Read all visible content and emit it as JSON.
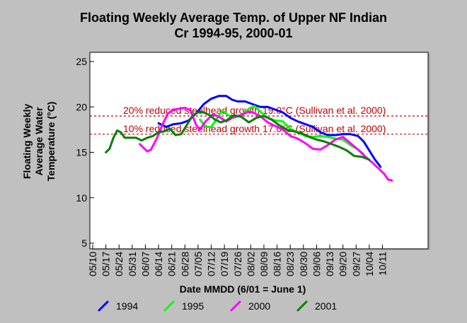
{
  "chart_data": {
    "type": "line",
    "title_lines": [
      "Floating Weekly Average Temp. of Upper NF Indian",
      "Cr 1994-95, 2000-01"
    ],
    "xlabel": "Date MMDD (6/01 = June 1)",
    "ylabel_lines": [
      "Floating Weekly",
      "Average Water",
      "Temperature (°C)"
    ],
    "ylim": [
      5,
      25
    ],
    "yticks": [
      5,
      10,
      15,
      20,
      25
    ],
    "x_day_range": [
      1,
      177
    ],
    "x_tick_labels": [
      "05/10",
      "05/17",
      "05/24",
      "05/31",
      "06/07",
      "06/14",
      "06/21",
      "06/28",
      "07/05",
      "07/12",
      "07/19",
      "07/26",
      "08/02",
      "08/09",
      "08/16",
      "08/23",
      "08/30",
      "09/06",
      "09/13",
      "09/20",
      "09/27",
      "10/04",
      "10/11"
    ],
    "x_tick_days": [
      1,
      8,
      15,
      22,
      29,
      36,
      43,
      50,
      57,
      64,
      71,
      78,
      85,
      92,
      99,
      106,
      113,
      120,
      127,
      134,
      141,
      148,
      155
    ],
    "grid": false,
    "legend_position": "bottom",
    "reference_lines": [
      {
        "value": 19.0,
        "label": "20% reduced steelhead growth 19.0°C (Sullivan et al. 2000)",
        "color": "#c00000"
      },
      {
        "value": 17.0,
        "label": "10% reduced steelhead growth 17.0°C (Sullivan et al. 2000)",
        "color": "#c00000"
      }
    ],
    "series": [
      {
        "name": "1994",
        "color": "#0000ff",
        "points": [
          [
            36,
            18.2
          ],
          [
            40,
            17.8
          ],
          [
            44,
            18.1
          ],
          [
            48,
            18.2
          ],
          [
            52,
            18.5
          ],
          [
            56,
            19.3
          ],
          [
            60,
            20.3
          ],
          [
            64,
            20.9
          ],
          [
            68,
            21.2
          ],
          [
            72,
            21.2
          ],
          [
            75,
            20.8
          ],
          [
            78,
            20.6
          ],
          [
            82,
            20.6
          ],
          [
            86,
            20.3
          ],
          [
            90,
            20.0
          ],
          [
            94,
            20.0
          ],
          [
            98,
            19.7
          ],
          [
            102,
            19.4
          ],
          [
            106,
            18.8
          ],
          [
            110,
            18.4
          ],
          [
            114,
            18.1
          ],
          [
            118,
            17.8
          ],
          [
            122,
            17.2
          ],
          [
            126,
            16.9
          ],
          [
            130,
            16.9
          ],
          [
            134,
            17.0
          ],
          [
            138,
            17.0
          ],
          [
            142,
            16.8
          ],
          [
            145,
            16.2
          ],
          [
            148,
            15.2
          ],
          [
            151,
            14.2
          ],
          [
            154,
            13.4
          ]
        ]
      },
      {
        "name": "1995",
        "color": "#00ff00",
        "points": [
          [
            58,
            18.6
          ],
          [
            61,
            17.8
          ],
          [
            64,
            17.8
          ],
          [
            67,
            18.7
          ],
          [
            70,
            19.6
          ],
          [
            73,
            19.1
          ],
          [
            76,
            18.8
          ],
          [
            80,
            19.1
          ],
          [
            84,
            19.8
          ],
          [
            87,
            20.1
          ],
          [
            90,
            19.5
          ],
          [
            94,
            18.8
          ],
          [
            98,
            18.5
          ],
          [
            102,
            18.4
          ],
          [
            106,
            17.6
          ],
          [
            110,
            17.2
          ],
          [
            114,
            16.8
          ],
          [
            118,
            16.7
          ],
          [
            122,
            16.8
          ],
          [
            126,
            16.7
          ],
          [
            130,
            16.5
          ],
          [
            134,
            16.4
          ],
          [
            138,
            15.8
          ],
          [
            142,
            15.3
          ],
          [
            145,
            14.8
          ]
        ]
      },
      {
        "name": "2000",
        "color": "#ff00ff",
        "points": [
          [
            26,
            15.9
          ],
          [
            28,
            15.5
          ],
          [
            30,
            15.1
          ],
          [
            32,
            15.3
          ],
          [
            35,
            16.5
          ],
          [
            38,
            18.0
          ],
          [
            41,
            19.3
          ],
          [
            44,
            19.7
          ],
          [
            47,
            19.8
          ],
          [
            50,
            19.9
          ],
          [
            53,
            19.6
          ],
          [
            56,
            18.0
          ],
          [
            58,
            17.5
          ],
          [
            61,
            18.4
          ],
          [
            65,
            19.2
          ],
          [
            69,
            18.8
          ],
          [
            72,
            18.4
          ],
          [
            76,
            18.9
          ],
          [
            80,
            19.1
          ],
          [
            84,
            19.5
          ],
          [
            87,
            19.3
          ],
          [
            90,
            19.0
          ],
          [
            94,
            18.3
          ],
          [
            98,
            17.9
          ],
          [
            102,
            17.5
          ],
          [
            106,
            16.8
          ],
          [
            110,
            16.5
          ],
          [
            114,
            16.0
          ],
          [
            118,
            15.4
          ],
          [
            122,
            15.3
          ],
          [
            126,
            15.8
          ],
          [
            130,
            16.4
          ],
          [
            134,
            16.7
          ],
          [
            138,
            16.0
          ],
          [
            142,
            15.3
          ],
          [
            146,
            14.5
          ],
          [
            150,
            13.8
          ],
          [
            153,
            13.2
          ],
          [
            156,
            12.6
          ],
          [
            158,
            12.0
          ],
          [
            160,
            11.9
          ]
        ]
      },
      {
        "name": "2001",
        "color": "#007f00",
        "points": [
          [
            8,
            15.0
          ],
          [
            10,
            15.4
          ],
          [
            12,
            16.6
          ],
          [
            14,
            17.4
          ],
          [
            16,
            17.2
          ],
          [
            18,
            16.6
          ],
          [
            21,
            16.6
          ],
          [
            24,
            16.6
          ],
          [
            27,
            16.3
          ],
          [
            30,
            16.6
          ],
          [
            33,
            16.8
          ],
          [
            36,
            17.2
          ],
          [
            39,
            17.3
          ],
          [
            42,
            17.6
          ],
          [
            45,
            16.9
          ],
          [
            48,
            17.0
          ],
          [
            51,
            18.0
          ],
          [
            54,
            19.0
          ],
          [
            57,
            19.4
          ],
          [
            60,
            19.4
          ],
          [
            63,
            19.1
          ],
          [
            66,
            18.6
          ],
          [
            69,
            18.3
          ],
          [
            72,
            18.5
          ],
          [
            76,
            19.1
          ],
          [
            80,
            18.9
          ],
          [
            84,
            18.3
          ],
          [
            88,
            18.8
          ],
          [
            92,
            19.0
          ],
          [
            96,
            18.6
          ],
          [
            100,
            18.0
          ],
          [
            104,
            17.5
          ],
          [
            108,
            17.3
          ],
          [
            112,
            17.1
          ],
          [
            116,
            16.7
          ],
          [
            120,
            16.4
          ],
          [
            124,
            16.2
          ],
          [
            128,
            15.9
          ],
          [
            132,
            15.6
          ],
          [
            136,
            15.2
          ],
          [
            140,
            14.6
          ],
          [
            144,
            14.5
          ],
          [
            148,
            14.2
          ]
        ]
      }
    ]
  }
}
